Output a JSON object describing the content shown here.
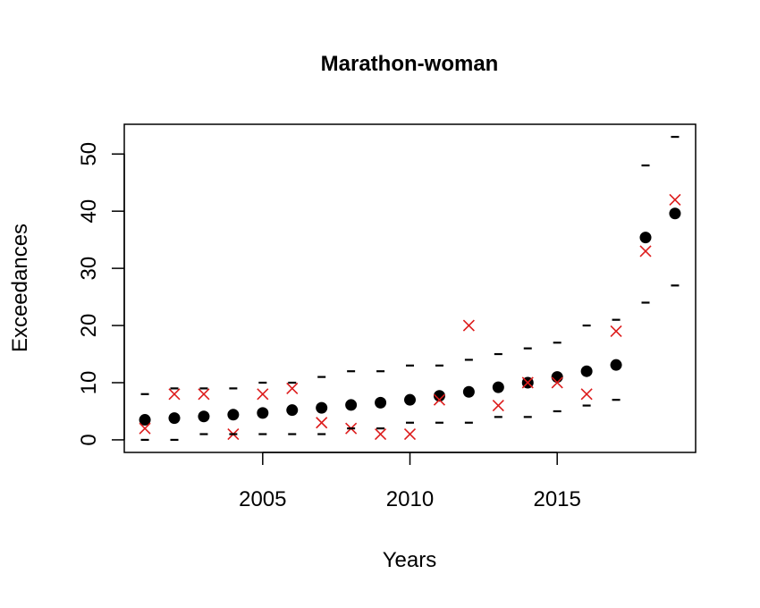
{
  "chart_data": {
    "type": "scatter",
    "title": "Marathon-woman",
    "xlabel": "Years",
    "ylabel": "Exceedances",
    "xlim": [
      2000.3,
      2019.7
    ],
    "ylim": [
      -2.2,
      55.2
    ],
    "xticks": [
      2005,
      2010,
      2015
    ],
    "yticks": [
      0,
      10,
      20,
      30,
      40,
      50
    ],
    "x": [
      2001,
      2002,
      2003,
      2004,
      2005,
      2006,
      2007,
      2008,
      2009,
      2010,
      2011,
      2012,
      2013,
      2014,
      2015,
      2016,
      2017,
      2018,
      2019
    ],
    "series": [
      {
        "marker": "filled-circle",
        "color": "#000000",
        "values": [
          3.5,
          3.8,
          4.1,
          4.4,
          4.7,
          5.2,
          5.6,
          6.1,
          6.5,
          7.0,
          7.7,
          8.4,
          9.2,
          10.0,
          11.0,
          12.0,
          13.1,
          35.4,
          39.6
        ]
      },
      {
        "marker": "x-cross",
        "color": "#dd1c1c",
        "values": [
          2,
          8,
          8,
          1,
          8,
          9,
          3,
          2,
          1,
          1,
          7,
          20,
          6,
          10,
          10,
          8,
          19,
          33,
          42
        ]
      },
      {
        "marker": "dash",
        "color": "#000000",
        "values": [
          8,
          9,
          9,
          9,
          10,
          10,
          11,
          12,
          12,
          13,
          13,
          14,
          15,
          16,
          17,
          20,
          21,
          48,
          53
        ]
      },
      {
        "marker": "dash",
        "color": "#000000",
        "values": [
          0,
          0,
          1,
          1,
          1,
          1,
          1,
          2,
          2,
          3,
          3,
          3,
          4,
          4,
          5,
          6,
          7,
          24,
          27
        ]
      }
    ]
  }
}
